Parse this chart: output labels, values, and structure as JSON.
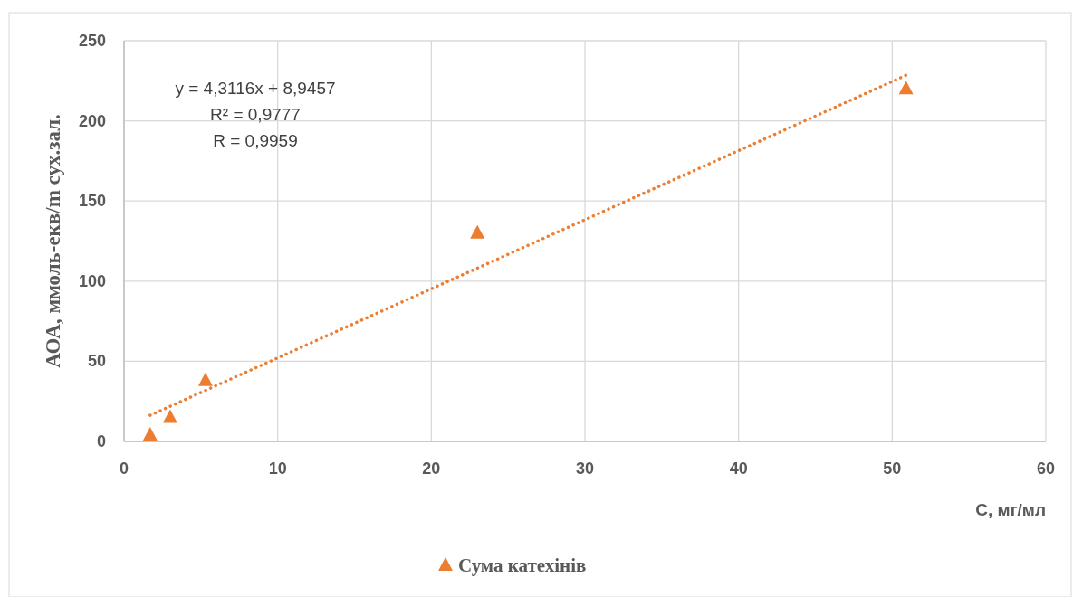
{
  "chart_data": {
    "type": "scatter",
    "xlabel": "С, мг/мл",
    "ylabel": "АОА, ммоль-екв/m сух.зал.",
    "xlim": [
      0,
      60
    ],
    "xticks": [
      0,
      10,
      20,
      30,
      40,
      50,
      60
    ],
    "ylim": [
      0,
      250
    ],
    "yticks": [
      0,
      50,
      100,
      150,
      200,
      250
    ],
    "grid": true,
    "legend": "bottom",
    "annotations": [
      "y = 4,3116x + 8,9457",
      "R² = 0,9777",
      "R = 0,9959"
    ],
    "series": [
      {
        "name": "Сума катехінів",
        "color": "#ed7d31",
        "marker": "triangle",
        "x": [
          1.7,
          3.0,
          5.3,
          23.0,
          50.9
        ],
        "values": [
          4,
          15,
          38,
          130,
          220
        ]
      },
      {
        "type": "line",
        "color": "#ed7d31",
        "marker": "none",
        "line_style": "dotted",
        "x": [
          1.7,
          50.9
        ],
        "values": [
          16.3,
          228.4
        ]
      }
    ]
  }
}
